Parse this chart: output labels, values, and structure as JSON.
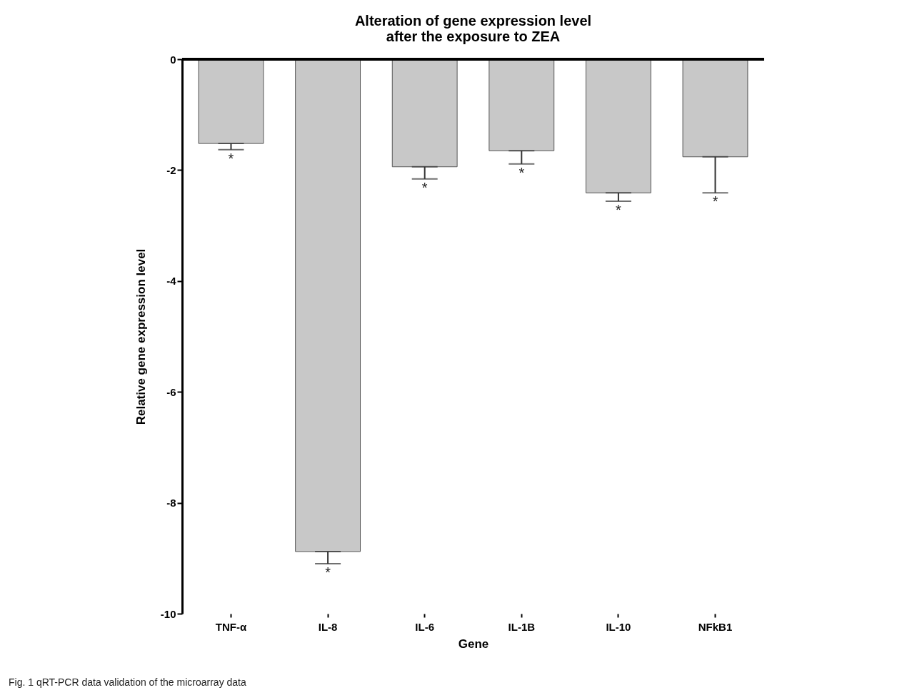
{
  "chart_data": {
    "type": "bar",
    "title": "Alteration of gene expression level\nafter the exposure to ZEA",
    "xlabel": "Gene",
    "ylabel": "Relative gene expression level",
    "categories": [
      "TNF-α",
      "IL-8",
      "IL-6",
      "IL-1B",
      "IL-10",
      "NFkB1"
    ],
    "values": [
      -1.52,
      -8.88,
      -1.94,
      -1.65,
      -2.41,
      -1.76
    ],
    "errors": [
      [
        -1.63,
        -1.52
      ],
      [
        -9.1,
        -8.88
      ],
      [
        -2.16,
        -1.94
      ],
      [
        -1.89,
        -1.65
      ],
      [
        -2.56,
        -2.41
      ],
      [
        -2.41,
        -1.76
      ]
    ],
    "color": "#c8c8c8",
    "ylim": [
      -10,
      0
    ],
    "yticks": [
      -10,
      -8,
      -6,
      -4,
      -2,
      0
    ],
    "ref_lines": [
      {
        "axis": "y",
        "value": 0,
        "label": null
      }
    ],
    "annotations": [
      {
        "text": "*",
        "x": "TNF-α",
        "y": -1.63
      },
      {
        "text": "*",
        "x": "IL-8",
        "y": -9.1
      },
      {
        "text": "*",
        "x": "IL-6",
        "y": -2.16
      },
      {
        "text": "*",
        "x": "IL-1B",
        "y": -1.89
      },
      {
        "text": "*",
        "x": "IL-10",
        "y": -2.56
      },
      {
        "text": "*",
        "x": "NFkB1",
        "y": -2.41
      },
      "Fig. 1 qRT-PCR data validation of the microarray data"
    ],
    "grid": false
  }
}
